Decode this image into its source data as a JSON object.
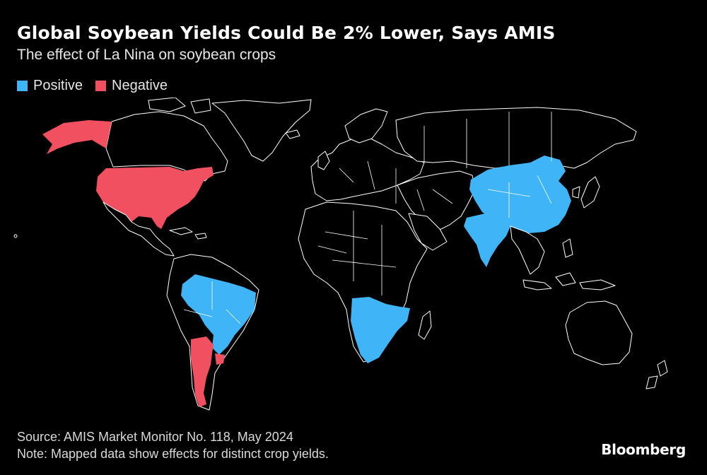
{
  "title": "Global Soybean Yields Could Be 2% Lower, Says AMIS",
  "subtitle": "The effect of La Nina on soybean crops",
  "legend": [
    {
      "label": "Positive",
      "color": "#3fb4f6"
    },
    {
      "label": "Negative",
      "color": "#f0505f"
    }
  ],
  "regions": {
    "positive": [
      "China",
      "India",
      "Brazil",
      "Southern Africa"
    ],
    "negative": [
      "United States",
      "Alaska",
      "Argentina",
      "Uruguay"
    ]
  },
  "footer": {
    "source": "Source: AMIS Market Monitor No. 118, May 2024",
    "note": "Note: Mapped data show effects for distinct crop yields."
  },
  "brand": "Bloomberg"
}
